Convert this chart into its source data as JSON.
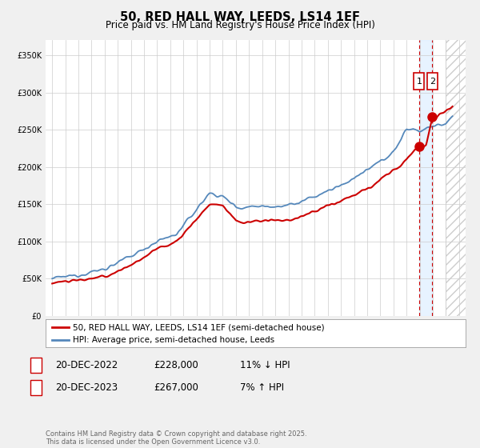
{
  "title": "50, RED HALL WAY, LEEDS, LS14 1EF",
  "subtitle": "Price paid vs. HM Land Registry's House Price Index (HPI)",
  "ylim": [
    0,
    370000
  ],
  "yticks": [
    0,
    50000,
    100000,
    150000,
    200000,
    250000,
    300000,
    350000
  ],
  "xlim_min": 1994.5,
  "xlim_max": 2026.5,
  "legend_line1": "50, RED HALL WAY, LEEDS, LS14 1EF (semi-detached house)",
  "legend_line2": "HPI: Average price, semi-detached house, Leeds",
  "sale1_label": "1",
  "sale1_date": "20-DEC-2022",
  "sale1_price": "£228,000",
  "sale1_hpi": "11% ↓ HPI",
  "sale2_label": "2",
  "sale2_date": "20-DEC-2023",
  "sale2_price": "£267,000",
  "sale2_hpi": "7% ↑ HPI",
  "footer": "Contains HM Land Registry data © Crown copyright and database right 2025.\nThis data is licensed under the Open Government Licence v3.0.",
  "red_color": "#cc0000",
  "blue_color": "#5588bb",
  "background_color": "#f0f0f0",
  "plot_bg_color": "#ffffff",
  "grid_color": "#cccccc",
  "sale1_x": 2022.96,
  "sale2_x": 2023.96,
  "sale1_y": 228000,
  "sale2_y": 267000,
  "future_start": 2025.0
}
